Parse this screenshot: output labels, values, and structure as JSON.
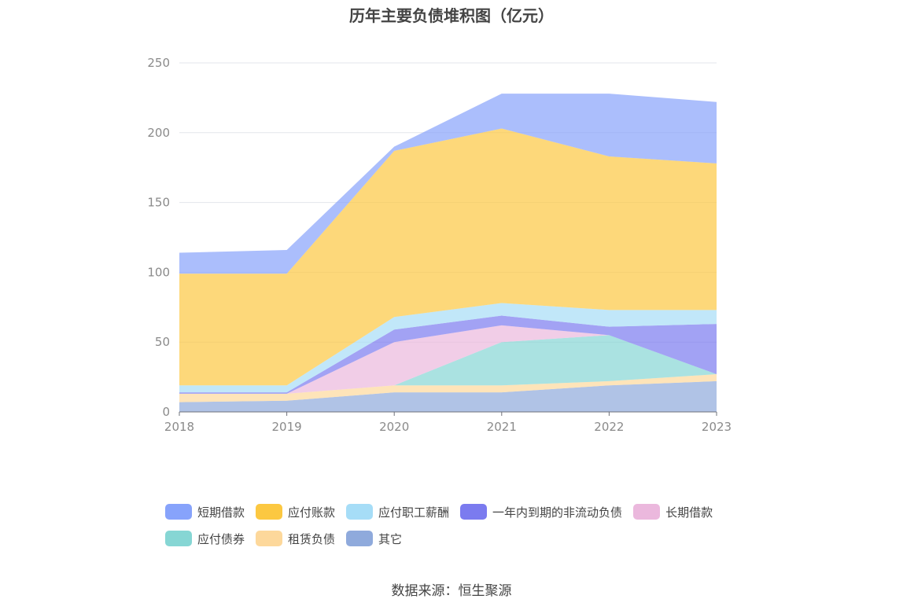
{
  "chart_data": {
    "type": "area",
    "stacked": true,
    "title": "历年主要负债堆积图（亿元）",
    "categories": [
      "2018",
      "2019",
      "2020",
      "2021",
      "2022",
      "2023"
    ],
    "ylim": [
      0,
      250
    ],
    "yticks": [
      0,
      50,
      100,
      150,
      200,
      250
    ],
    "grid": true,
    "legend_position": "bottom",
    "series": [
      {
        "name": "其它",
        "color": "#8FAADC",
        "values": [
          7,
          8,
          14,
          14,
          19,
          22
        ]
      },
      {
        "name": "租赁负债",
        "color": "#FDD89B",
        "values": [
          6,
          5,
          5,
          5,
          3,
          5
        ]
      },
      {
        "name": "应付债券",
        "color": "#86D6D4",
        "values": [
          0,
          0,
          0,
          31,
          33,
          0
        ]
      },
      {
        "name": "长期借款",
        "color": "#EBB8DD",
        "values": [
          0,
          0,
          31,
          12,
          0,
          0
        ]
      },
      {
        "name": "一年内到期的非流动负债",
        "color": "#7B7BEF",
        "values": [
          1,
          1,
          9,
          7,
          6,
          36
        ]
      },
      {
        "name": "应付职工薪酬",
        "color": "#A6DDF7",
        "values": [
          5,
          5,
          9,
          9,
          12,
          10
        ]
      },
      {
        "name": "应付账款",
        "color": "#FCC841",
        "values": [
          80,
          80,
          119,
          125,
          110,
          105
        ]
      },
      {
        "name": "短期借款",
        "color": "#87A3FB",
        "values": [
          15,
          17,
          3,
          25,
          45,
          44
        ]
      }
    ],
    "legend_order": [
      "短期借款",
      "应付账款",
      "应付职工薪酬",
      "一年内到期的非流动负债",
      "长期借款",
      "应付债券",
      "租赁负债",
      "其它"
    ]
  },
  "source": "数据来源：恒生聚源"
}
